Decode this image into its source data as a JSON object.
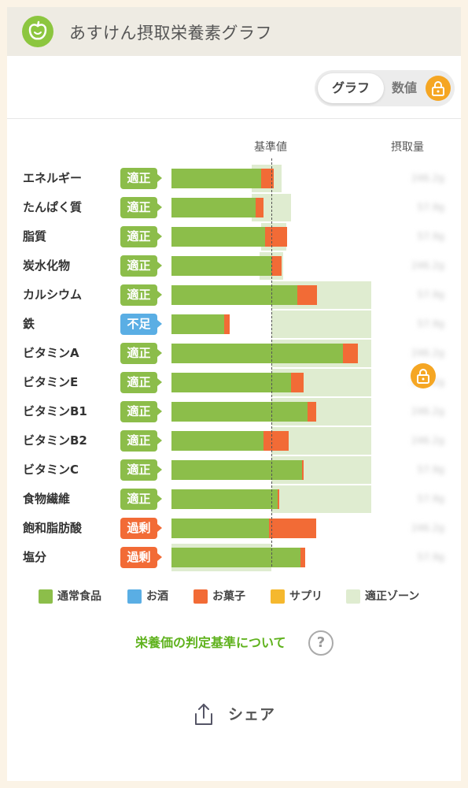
{
  "header": {
    "title": "あすけん摂取栄養素グラフ",
    "icon": "apple-icon"
  },
  "toggle": {
    "graph_label": "グラフ",
    "value_label": "数値",
    "lock_icon": "lock-icon"
  },
  "columns": {
    "baseline": "基準値",
    "intake": "摂取量"
  },
  "colors": {
    "food": "#8cbe4a",
    "alcohol": "#5aaee4",
    "snack": "#f26b36",
    "supplement": "#f5b82e",
    "zone": "#dfecd0",
    "ok": "#8cbd4a",
    "low": "#5aaee4",
    "over": "#f26b36"
  },
  "nutrients": [
    {
      "name": "エネルギー",
      "status": "適正",
      "status_type": "ok",
      "amount": "246.2g",
      "food": 90,
      "snack": 12,
      "zone": [
        80,
        110
      ]
    },
    {
      "name": "たんぱく質",
      "status": "適正",
      "status_type": "ok",
      "amount": "57.9g",
      "food": 84,
      "snack": 8,
      "zone": [
        80,
        120
      ]
    },
    {
      "name": "脂質",
      "status": "適正",
      "status_type": "ok",
      "amount": "57.9g",
      "food": 94,
      "snack": 22,
      "zone": [
        90,
        115
      ]
    },
    {
      "name": "炭水化物",
      "status": "適正",
      "status_type": "ok",
      "amount": "246.2g",
      "food": 100,
      "snack": 10,
      "zone": [
        88,
        112
      ]
    },
    {
      "name": "カルシウム",
      "status": "適正",
      "status_type": "ok",
      "amount": "57.9g",
      "food": 126,
      "snack": 20,
      "zone": [
        100,
        200
      ]
    },
    {
      "name": "鉄",
      "status": "不足",
      "status_type": "low",
      "amount": "57.9g",
      "food": 53,
      "snack": 5,
      "zone": [
        100,
        200
      ]
    },
    {
      "name": "ビタミンA",
      "status": "適正",
      "status_type": "ok",
      "amount": "246.2g",
      "food": 172,
      "snack": 15,
      "zone": [
        100,
        200
      ]
    },
    {
      "name": "ビタミンE",
      "status": "適正",
      "status_type": "ok",
      "amount": "246.2g",
      "food": 120,
      "snack": 12,
      "zone": [
        100,
        200
      ]
    },
    {
      "name": "ビタミンB1",
      "status": "適正",
      "status_type": "ok",
      "amount": "246.2g",
      "food": 136,
      "snack": 9,
      "zone": [
        100,
        200
      ]
    },
    {
      "name": "ビタミンB2",
      "status": "適正",
      "status_type": "ok",
      "amount": "246.2g",
      "food": 92,
      "snack": 25,
      "zone": [
        100,
        200
      ]
    },
    {
      "name": "ビタミンC",
      "status": "適正",
      "status_type": "ok",
      "amount": "57.9g",
      "food": 131,
      "snack": 1,
      "zone": [
        100,
        200
      ]
    },
    {
      "name": "食物繊維",
      "status": "適正",
      "status_type": "ok",
      "amount": "57.9g",
      "food": 106,
      "snack": 2,
      "zone": [
        100,
        200
      ]
    },
    {
      "name": "飽和脂肪酸",
      "status": "過剰",
      "status_type": "over",
      "amount": "246.2g",
      "food": 98,
      "snack": 47,
      "zone": [
        0,
        0
      ]
    },
    {
      "name": "塩分",
      "status": "過剰",
      "status_type": "over",
      "amount": "57.9g",
      "food": 129,
      "snack": 5,
      "zone": [
        0,
        100
      ]
    }
  ],
  "legend": [
    {
      "label": "通常食品",
      "color": "#8cbe4a"
    },
    {
      "label": "お酒",
      "color": "#5aaee4"
    },
    {
      "label": "お菓子",
      "color": "#f26b36"
    },
    {
      "label": "サプリ",
      "color": "#f5b82e"
    },
    {
      "label": "適正ゾーン",
      "color": "#dfecd0"
    }
  ],
  "criteria_link": "栄養価の判定基準について",
  "share_label": "シェア"
}
